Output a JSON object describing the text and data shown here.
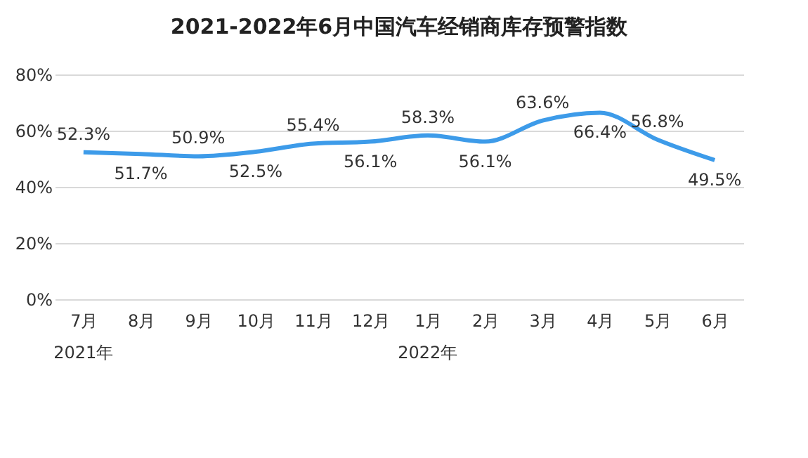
{
  "chart_data": {
    "type": "line",
    "title": "2021-2022年6月中国汽车经销商库存预警指数",
    "categories": [
      "7月",
      "8月",
      "9月",
      "10月",
      "11月",
      "12月",
      "1月",
      "2月",
      "3月",
      "4月",
      "5月",
      "6月"
    ],
    "series": [
      {
        "color": "#3d9be9",
        "values": [
          52.3,
          51.7,
          50.9,
          52.5,
          55.4,
          56.1,
          58.3,
          56.1,
          63.6,
          66.4,
          56.8,
          49.5
        ]
      }
    ],
    "value_labels": [
      "52.3%",
      "51.7%",
      "50.9%",
      "52.5%",
      "55.4%",
      "56.1%",
      "58.3%",
      "56.1%",
      "63.6%",
      "66.4%",
      "56.8%",
      "49.5%"
    ],
    "ylim": [
      0,
      80
    ],
    "yticks": [
      {
        "value": 0,
        "label": "0%"
      },
      {
        "value": 20,
        "label": "20%"
      },
      {
        "value": 40,
        "label": "40%"
      },
      {
        "value": 60,
        "label": "60%"
      },
      {
        "value": 80,
        "label": "80%"
      }
    ],
    "grid": "y",
    "marker": "none",
    "line_style": "solid",
    "annotations": [
      "2021年",
      "2022年"
    ]
  }
}
